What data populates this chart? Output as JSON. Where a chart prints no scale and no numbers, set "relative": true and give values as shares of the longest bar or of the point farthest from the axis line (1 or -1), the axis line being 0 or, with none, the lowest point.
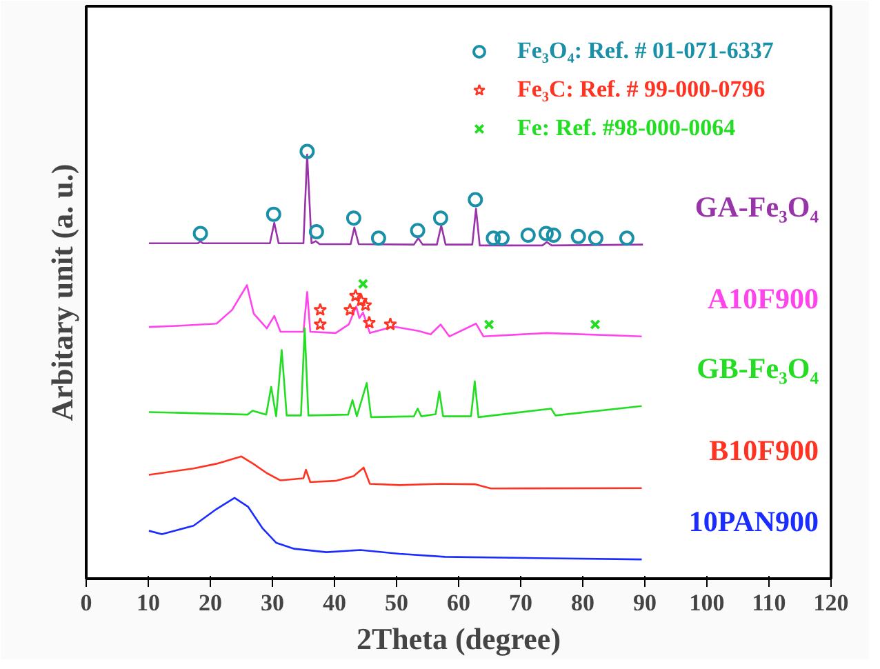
{
  "chart_data": {
    "type": "line",
    "relative": true,
    "xlabel": "2Theta (degree)",
    "ylabel": "Arbitary unit (a. u.)",
    "xlim": [
      0,
      120
    ],
    "xticks": [
      0,
      10,
      20,
      30,
      40,
      50,
      60,
      70,
      80,
      90,
      100,
      110,
      120
    ],
    "grid": false,
    "legend": "top right",
    "marker": "none",
    "line_style": "solid",
    "series": [
      {
        "name": "GA-Fe₃O₄",
        "color": "#9933aa",
        "x": [
          10.1,
          18.0,
          18.4,
          18.8,
          29.6,
          30.3,
          31.0,
          35.0,
          35.6,
          36.3,
          37.0,
          37.6,
          42.6,
          43.2,
          43.9,
          52.8,
          53.5,
          54.2,
          56.5,
          57.2,
          57.9,
          62.2,
          62.8,
          63.4,
          73.5,
          74.2,
          75.0,
          89.7
        ],
        "values": [
          0.785,
          0.785,
          0.79,
          0.785,
          0.785,
          0.833,
          0.785,
          0.785,
          0.993,
          0.785,
          0.79,
          0.783,
          0.783,
          0.822,
          0.783,
          0.782,
          0.797,
          0.782,
          0.782,
          0.827,
          0.782,
          0.782,
          0.866,
          0.78,
          0.78,
          0.788,
          0.78,
          0.782
        ]
      },
      {
        "name": "A10F900",
        "color": "#ff44ee",
        "x": [
          10.1,
          15.1,
          21.0,
          23.5,
          25.9,
          27.0,
          29.1,
          30.3,
          31.3,
          35.0,
          35.6,
          36.1,
          40.2,
          42.3,
          43.5,
          44.0,
          44.6,
          45.7,
          49.5,
          53.5,
          55.5,
          57.1,
          58.5,
          62.8,
          64.0,
          74.2,
          89.5
        ],
        "values": [
          0.589,
          0.592,
          0.597,
          0.629,
          0.687,
          0.62,
          0.586,
          0.615,
          0.578,
          0.578,
          0.671,
          0.578,
          0.575,
          0.595,
          0.637,
          0.61,
          0.623,
          0.575,
          0.59,
          0.58,
          0.572,
          0.595,
          0.567,
          0.597,
          0.567,
          0.575,
          0.567
        ]
      },
      {
        "name": "GB-Fe₃O₄",
        "color": "#22dd22",
        "x": [
          10.1,
          26.0,
          26.8,
          29.0,
          29.8,
          30.6,
          31.5,
          32.3,
          34.6,
          35.2,
          35.8,
          42.2,
          42.9,
          43.6,
          45.2,
          45.9,
          52.8,
          53.4,
          54.0,
          56.3,
          56.9,
          57.5,
          62.0,
          62.6,
          63.2,
          74.9,
          75.6,
          89.5
        ],
        "values": [
          0.39,
          0.384,
          0.393,
          0.384,
          0.449,
          0.38,
          0.535,
          0.382,
          0.382,
          0.586,
          0.382,
          0.384,
          0.418,
          0.38,
          0.458,
          0.378,
          0.38,
          0.398,
          0.38,
          0.385,
          0.438,
          0.38,
          0.38,
          0.462,
          0.378,
          0.398,
          0.382,
          0.404
        ]
      },
      {
        "name": "B10F900",
        "color": "#ff3322",
        "x": [
          10.1,
          17.3,
          21.0,
          25.0,
          26.9,
          29.1,
          31.3,
          35.0,
          35.4,
          36.1,
          40.2,
          43.1,
          44.7,
          45.7,
          50.5,
          57.1,
          62.6,
          65.2,
          89.5
        ],
        "values": [
          0.243,
          0.258,
          0.269,
          0.286,
          0.269,
          0.247,
          0.23,
          0.235,
          0.255,
          0.226,
          0.229,
          0.24,
          0.26,
          0.222,
          0.219,
          0.222,
          0.221,
          0.211,
          0.212
        ]
      },
      {
        "name": "10PAN900",
        "color": "#1a2cff",
        "x": [
          10.1,
          12.2,
          17.3,
          21.0,
          23.9,
          26.1,
          28.4,
          30.6,
          33.5,
          38.7,
          44.2,
          50.5,
          57.8,
          72.6,
          89.5
        ],
        "values": [
          0.112,
          0.104,
          0.124,
          0.163,
          0.189,
          0.168,
          0.118,
          0.084,
          0.07,
          0.062,
          0.067,
          0.058,
          0.051,
          0.048,
          0.045
        ]
      },
      {
        "type": "scatter",
        "marker": "circle",
        "name": "Fe₃O₄: Ref. # 01-071-6337",
        "color": "#1a8fa8",
        "x": [
          18.4,
          30.2,
          35.6,
          37.1,
          43.1,
          47.1,
          53.4,
          57.1,
          62.7,
          65.6,
          67.0,
          71.2,
          74.1,
          75.3,
          79.3,
          82.1,
          87.1
        ],
        "values": [
          0.808,
          0.853,
          1,
          0.812,
          0.844,
          0.797,
          0.815,
          0.844,
          0.887,
          0.797,
          0.797,
          0.804,
          0.808,
          0.804,
          0.801,
          0.797,
          0.797
        ]
      },
      {
        "type": "scatter",
        "marker": "star",
        "name": "Fe₃C: Ref. # 99-000-0796",
        "color": "#ff3322",
        "x": [
          37.7,
          37.7,
          42.5,
          43.4,
          44.3,
          45.0,
          45.6,
          49.0
        ],
        "values": [
          0.629,
          0.595,
          0.629,
          0.662,
          0.651,
          0.64,
          0.599,
          0.595
        ]
      },
      {
        "type": "scatter",
        "marker": "cross",
        "name": "Fe: Ref. #98-000-0064",
        "color": "#22dd22",
        "x": [
          44.6,
          64.9,
          82.0
        ],
        "values": [
          0.69,
          0.595,
          0.595
        ]
      }
    ]
  }
}
